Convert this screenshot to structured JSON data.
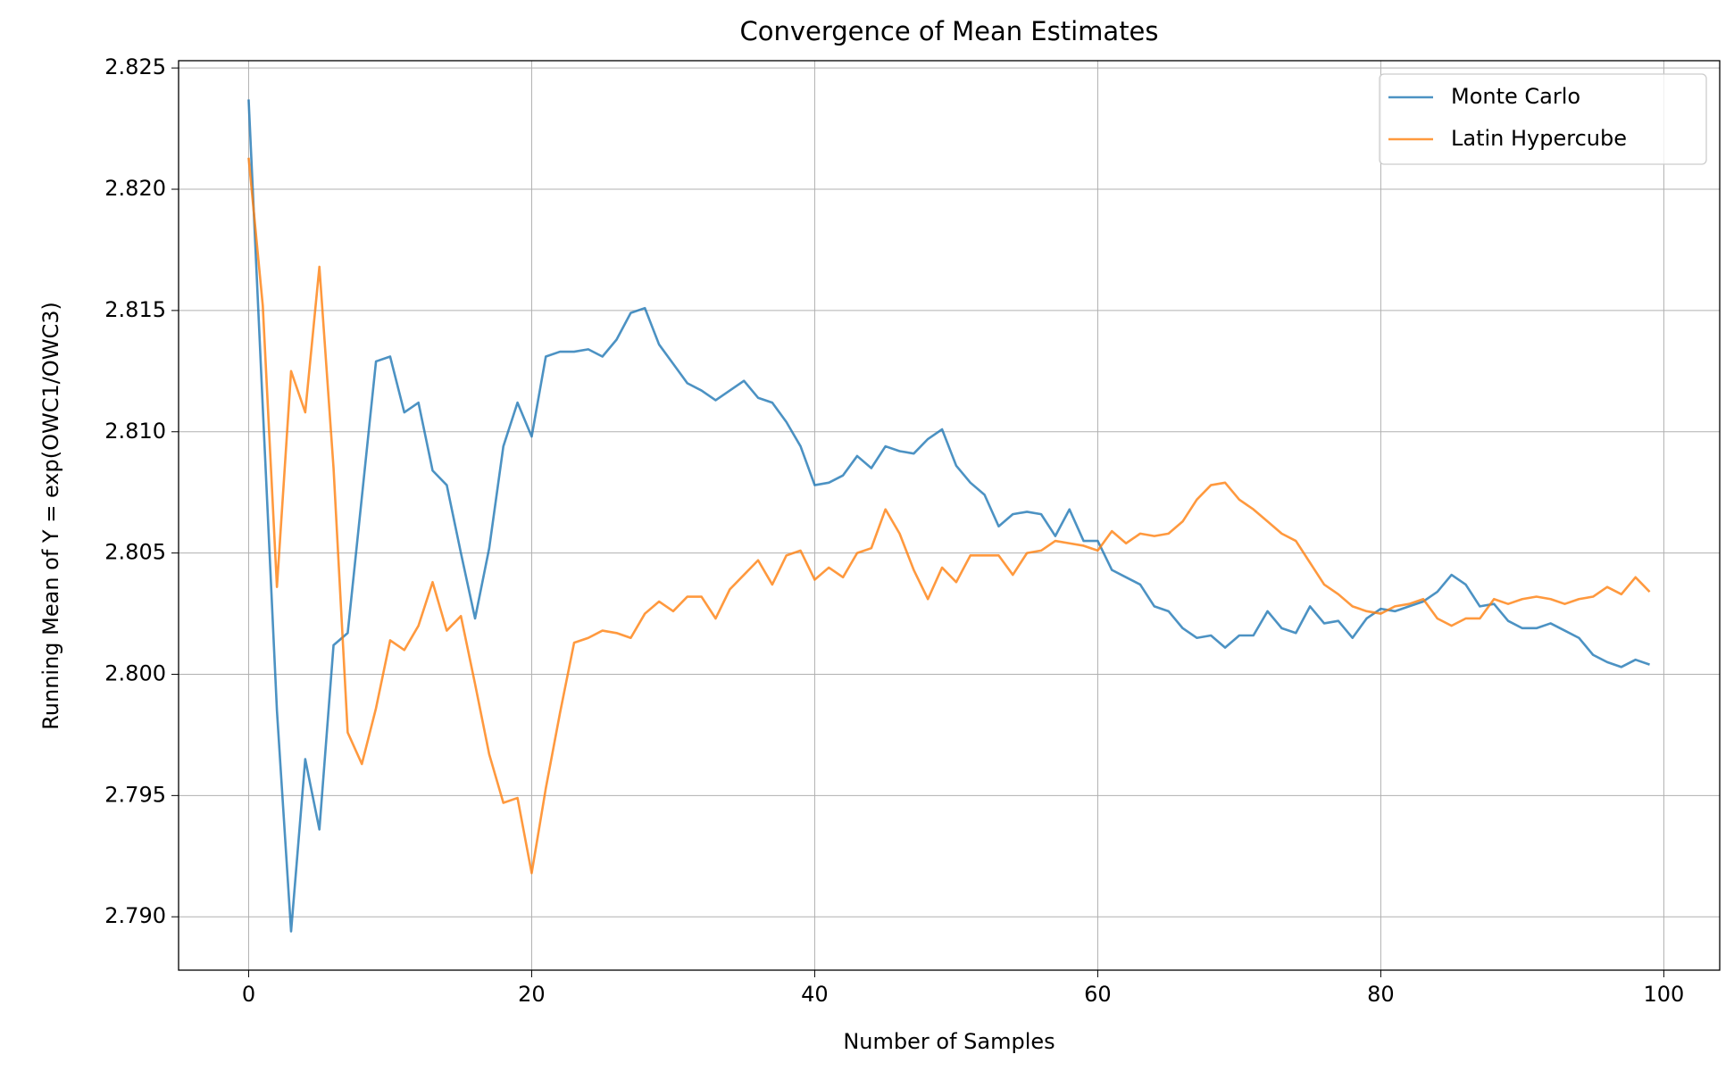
{
  "chart_data": {
    "type": "line",
    "title": "Convergence of Mean Estimates",
    "x_label": "Number of Samples",
    "y_label": "Running Mean of Y = exp(OWC1/OWC3)",
    "x": [
      0,
      1,
      2,
      3,
      4,
      5,
      6,
      7,
      8,
      9,
      10,
      11,
      12,
      13,
      14,
      15,
      16,
      17,
      18,
      19,
      20,
      21,
      22,
      23,
      24,
      25,
      26,
      27,
      28,
      29,
      30,
      31,
      32,
      33,
      34,
      35,
      36,
      37,
      38,
      39,
      40,
      41,
      42,
      43,
      44,
      45,
      46,
      47,
      48,
      49,
      50,
      51,
      52,
      53,
      54,
      55,
      56,
      57,
      58,
      59,
      60,
      61,
      62,
      63,
      64,
      65,
      66,
      67,
      68,
      69,
      70,
      71,
      72,
      73,
      74,
      75,
      76,
      77,
      78,
      79,
      80,
      81,
      82,
      83,
      84,
      85,
      86,
      87,
      88,
      89,
      90,
      91,
      92,
      93,
      94,
      95,
      96,
      97,
      98,
      99
    ],
    "series": [
      {
        "name": "Monte Carlo",
        "color": "#1f77b4",
        "values": [
          2.8237,
          2.811,
          2.7985,
          2.7894,
          2.7965,
          2.7936,
          2.8012,
          2.8017,
          2.8073,
          2.8129,
          2.8131,
          2.8108,
          2.8112,
          2.8084,
          2.8078,
          2.805,
          2.8023,
          2.8052,
          2.8094,
          2.8112,
          2.8098,
          2.8131,
          2.8133,
          2.8133,
          2.8134,
          2.8131,
          2.8138,
          2.8149,
          2.8151,
          2.8136,
          2.8128,
          2.812,
          2.8117,
          2.8113,
          2.8117,
          2.8121,
          2.8114,
          2.8112,
          2.8104,
          2.8094,
          2.8078,
          2.8079,
          2.8082,
          2.809,
          2.8085,
          2.8094,
          2.8092,
          2.8091,
          2.8097,
          2.8101,
          2.8086,
          2.8079,
          2.8074,
          2.8061,
          2.8066,
          2.8067,
          2.8066,
          2.8057,
          2.8068,
          2.8055,
          2.8055,
          2.8043,
          2.804,
          2.8037,
          2.8028,
          2.8026,
          2.8019,
          2.8015,
          2.8016,
          2.8011,
          2.8016,
          2.8016,
          2.8026,
          2.8019,
          2.8017,
          2.8028,
          2.8021,
          2.8022,
          2.8015,
          2.8023,
          2.8027,
          2.8026,
          2.8028,
          2.803,
          2.8034,
          2.8041,
          2.8037,
          2.8028,
          2.8029,
          2.8022,
          2.8019,
          2.8019,
          2.8021,
          2.8018,
          2.8015,
          2.8008,
          2.8005,
          2.8003,
          2.8006,
          2.8004
        ]
      },
      {
        "name": "Latin Hypercube",
        "color": "#ff7f0e",
        "values": [
          2.8213,
          2.8152,
          2.8036,
          2.8125,
          2.8108,
          2.8168,
          2.8085,
          2.7976,
          2.7963,
          2.7986,
          2.8014,
          2.801,
          2.802,
          2.8038,
          2.8018,
          2.8024,
          2.7996,
          2.7967,
          2.7947,
          2.7949,
          2.7918,
          2.7953,
          2.7984,
          2.8013,
          2.8015,
          2.8018,
          2.8017,
          2.8015,
          2.8025,
          2.803,
          2.8026,
          2.8032,
          2.8032,
          2.8023,
          2.8035,
          2.8041,
          2.8047,
          2.8037,
          2.8049,
          2.8051,
          2.8039,
          2.8044,
          2.804,
          2.805,
          2.8052,
          2.8068,
          2.8058,
          2.8043,
          2.8031,
          2.8044,
          2.8038,
          2.8049,
          2.8049,
          2.8049,
          2.8041,
          2.805,
          2.8051,
          2.8055,
          2.8054,
          2.8053,
          2.8051,
          2.8059,
          2.8054,
          2.8058,
          2.8057,
          2.8058,
          2.8063,
          2.8072,
          2.8078,
          2.8079,
          2.8072,
          2.8068,
          2.8063,
          2.8058,
          2.8055,
          2.8046,
          2.8037,
          2.8033,
          2.8028,
          2.8026,
          2.8025,
          2.8028,
          2.8029,
          2.8031,
          2.8023,
          2.802,
          2.8023,
          2.8023,
          2.8031,
          2.8029,
          2.8031,
          2.8032,
          2.8031,
          2.8029,
          2.8031,
          2.8032,
          2.8036,
          2.8033,
          2.804,
          2.8034
        ]
      }
    ],
    "xlim": [
      -4.95,
      103.95
    ],
    "ylim": [
      2.7878,
      2.8253
    ],
    "xticks": [
      0,
      20,
      40,
      60,
      80,
      100
    ],
    "yticks": [
      {
        "value": 2.79,
        "label": "2.790"
      },
      2.795,
      {
        "value": 2.8,
        "label": "2.800"
      },
      2.805,
      {
        "value": 2.81,
        "label": "2.810"
      },
      2.815,
      {
        "value": 2.82,
        "label": "2.820"
      },
      2.825
    ],
    "grid": true,
    "legend": "upper-right",
    "line_opacity": 0.8
  }
}
